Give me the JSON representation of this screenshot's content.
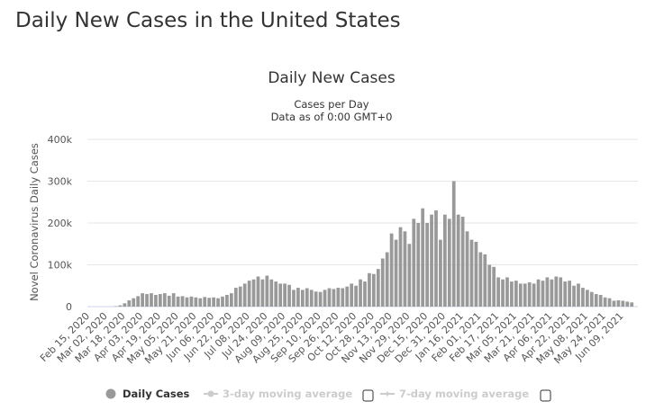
{
  "page": {
    "title": "Daily New Cases in the United States"
  },
  "chart_data": {
    "type": "bar",
    "title": "Daily New Cases",
    "subtitle": [
      "Cases per Day",
      "Data as of 0:00 GMT+0"
    ],
    "ylabel": "Novel Coronavirus Daily Cases",
    "xlabel": "",
    "ylim": [
      0,
      400000
    ],
    "y_ticks": [
      "0",
      "100k",
      "200k",
      "300k",
      "400k"
    ],
    "y_tick_values": [
      0,
      100000,
      200000,
      300000,
      400000
    ],
    "x_ticks": [
      "Feb 15, 2020",
      "Mar 02, 2020",
      "Mar 18, 2020",
      "Apr 03, 2020",
      "Apr 19, 2020",
      "May 05, 2020",
      "May 21, 2020",
      "Jun 06, 2020",
      "Jun 22, 2020",
      "Jul 08, 2020",
      "Jul 24, 2020",
      "Aug 09, 2020",
      "Aug 25, 2020",
      "Sep 10, 2020",
      "Sep 26, 2020",
      "Oct 12, 2020",
      "Oct 28, 2020",
      "Nov 13, 2020",
      "Nov 29, 2020",
      "Dec 15, 2020",
      "Dec 31, 2020",
      "Jan 16, 2021",
      "Feb 01, 2021",
      "Feb 17, 2021",
      "Mar 05, 2021",
      "Mar 21, 2021",
      "Apr 06, 2021",
      "Apr 22, 2021",
      "May 08, 2021",
      "May 24, 2021",
      "Jun 09, 2021"
    ],
    "grid": true,
    "legend_placement": "bottom",
    "colors": {
      "bars": "#999999",
      "grid": "#e6e6e6",
      "axis": "#ccd6eb",
      "legend_inactive": "#cccccc"
    },
    "series": [
      {
        "name": "Daily Cases",
        "data": [
          [
            "2020-02-15",
            0
          ],
          [
            "2020-02-19",
            0
          ],
          [
            "2020-02-23",
            0
          ],
          [
            "2020-02-27",
            0
          ],
          [
            "2020-03-02",
            0
          ],
          [
            "2020-03-06",
            0
          ],
          [
            "2020-03-10",
            1000
          ],
          [
            "2020-03-14",
            3000
          ],
          [
            "2020-03-18",
            8000
          ],
          [
            "2020-03-22",
            15000
          ],
          [
            "2020-03-26",
            20000
          ],
          [
            "2020-03-30",
            25000
          ],
          [
            "2020-04-03",
            32000
          ],
          [
            "2020-04-07",
            30000
          ],
          [
            "2020-04-11",
            32000
          ],
          [
            "2020-04-15",
            28000
          ],
          [
            "2020-04-19",
            30000
          ],
          [
            "2020-04-23",
            32000
          ],
          [
            "2020-04-27",
            26000
          ],
          [
            "2020-05-01",
            32000
          ],
          [
            "2020-05-05",
            24000
          ],
          [
            "2020-05-09",
            25000
          ],
          [
            "2020-05-13",
            22000
          ],
          [
            "2020-05-17",
            24000
          ],
          [
            "2020-05-21",
            22000
          ],
          [
            "2020-05-25",
            20000
          ],
          [
            "2020-05-29",
            23000
          ],
          [
            "2020-06-02",
            21000
          ],
          [
            "2020-06-06",
            22000
          ],
          [
            "2020-06-10",
            20000
          ],
          [
            "2020-06-14",
            24000
          ],
          [
            "2020-06-18",
            28000
          ],
          [
            "2020-06-22",
            32000
          ],
          [
            "2020-06-26",
            45000
          ],
          [
            "2020-06-30",
            48000
          ],
          [
            "2020-07-04",
            55000
          ],
          [
            "2020-07-08",
            62000
          ],
          [
            "2020-07-12",
            65000
          ],
          [
            "2020-07-16",
            72000
          ],
          [
            "2020-07-20",
            65000
          ],
          [
            "2020-07-24",
            74000
          ],
          [
            "2020-07-28",
            65000
          ],
          [
            "2020-08-01",
            60000
          ],
          [
            "2020-08-05",
            55000
          ],
          [
            "2020-08-09",
            55000
          ],
          [
            "2020-08-13",
            52000
          ],
          [
            "2020-08-17",
            40000
          ],
          [
            "2020-08-21",
            45000
          ],
          [
            "2020-08-25",
            40000
          ],
          [
            "2020-08-29",
            44000
          ],
          [
            "2020-09-02",
            40000
          ],
          [
            "2020-09-06",
            36000
          ],
          [
            "2020-09-10",
            35000
          ],
          [
            "2020-09-14",
            40000
          ],
          [
            "2020-09-18",
            44000
          ],
          [
            "2020-09-22",
            42000
          ],
          [
            "2020-09-26",
            45000
          ],
          [
            "2020-09-30",
            44000
          ],
          [
            "2020-10-04",
            48000
          ],
          [
            "2020-10-08",
            55000
          ],
          [
            "2020-10-12",
            50000
          ],
          [
            "2020-10-16",
            65000
          ],
          [
            "2020-10-20",
            60000
          ],
          [
            "2020-10-24",
            80000
          ],
          [
            "2020-10-28",
            78000
          ],
          [
            "2020-11-01",
            90000
          ],
          [
            "2020-11-05",
            115000
          ],
          [
            "2020-11-09",
            130000
          ],
          [
            "2020-11-13",
            175000
          ],
          [
            "2020-11-17",
            160000
          ],
          [
            "2020-11-21",
            190000
          ],
          [
            "2020-11-25",
            180000
          ],
          [
            "2020-11-29",
            150000
          ],
          [
            "2020-12-03",
            210000
          ],
          [
            "2020-12-07",
            200000
          ],
          [
            "2020-12-11",
            235000
          ],
          [
            "2020-12-15",
            200000
          ],
          [
            "2020-12-19",
            220000
          ],
          [
            "2020-12-23",
            230000
          ],
          [
            "2020-12-27",
            160000
          ],
          [
            "2020-12-31",
            220000
          ],
          [
            "2021-01-04",
            210000
          ],
          [
            "2021-01-08",
            300000
          ],
          [
            "2021-01-12",
            220000
          ],
          [
            "2021-01-16",
            215000
          ],
          [
            "2021-01-20",
            180000
          ],
          [
            "2021-01-24",
            160000
          ],
          [
            "2021-01-28",
            155000
          ],
          [
            "2021-02-01",
            130000
          ],
          [
            "2021-02-05",
            125000
          ],
          [
            "2021-02-09",
            100000
          ],
          [
            "2021-02-13",
            95000
          ],
          [
            "2021-02-17",
            70000
          ],
          [
            "2021-02-21",
            65000
          ],
          [
            "2021-02-25",
            70000
          ],
          [
            "2021-03-01",
            60000
          ],
          [
            "2021-03-05",
            62000
          ],
          [
            "2021-03-09",
            55000
          ],
          [
            "2021-03-13",
            55000
          ],
          [
            "2021-03-17",
            58000
          ],
          [
            "2021-03-21",
            55000
          ],
          [
            "2021-03-25",
            65000
          ],
          [
            "2021-03-29",
            62000
          ],
          [
            "2021-04-02",
            70000
          ],
          [
            "2021-04-06",
            65000
          ],
          [
            "2021-04-10",
            72000
          ],
          [
            "2021-04-14",
            70000
          ],
          [
            "2021-04-18",
            60000
          ],
          [
            "2021-04-22",
            62000
          ],
          [
            "2021-04-26",
            50000
          ],
          [
            "2021-04-30",
            55000
          ],
          [
            "2021-05-04",
            45000
          ],
          [
            "2021-05-08",
            40000
          ],
          [
            "2021-05-12",
            35000
          ],
          [
            "2021-05-16",
            30000
          ],
          [
            "2021-05-20",
            28000
          ],
          [
            "2021-05-24",
            22000
          ],
          [
            "2021-05-28",
            20000
          ],
          [
            "2021-06-01",
            14000
          ],
          [
            "2021-06-05",
            15000
          ],
          [
            "2021-06-09",
            14000
          ],
          [
            "2021-06-13",
            12000
          ],
          [
            "2021-06-17",
            10000
          ]
        ]
      },
      {
        "name": "3-day moving average",
        "visible": false
      },
      {
        "name": "7-day moving average",
        "visible": false
      }
    ]
  }
}
